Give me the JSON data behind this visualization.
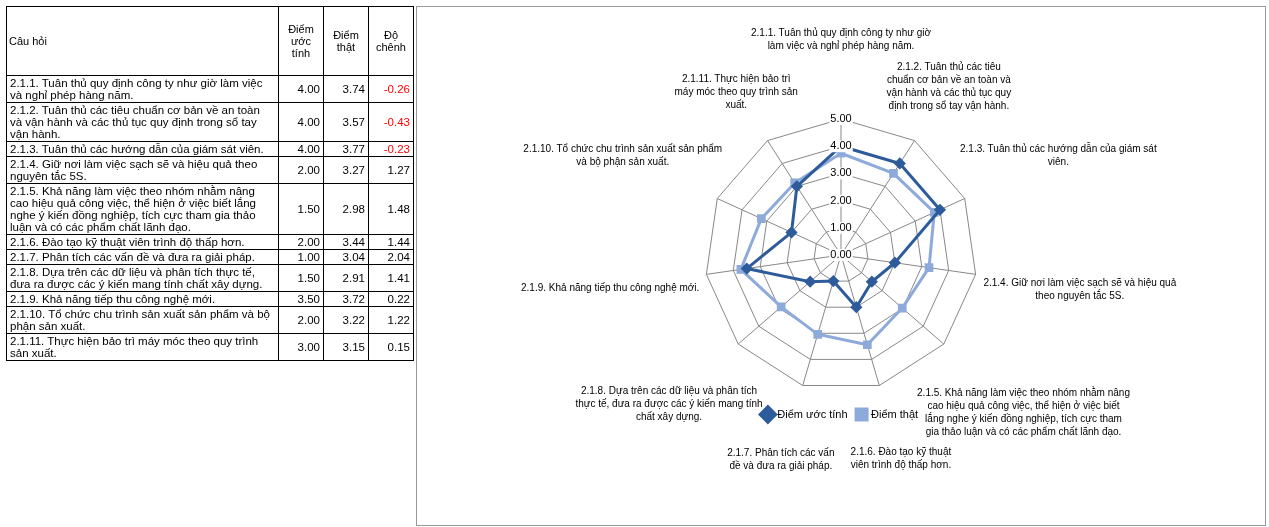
{
  "chart_data": [
    {
      "type": "heatmap",
      "ylabel": "Câu hỏi",
      "categories": [
        "Điểm ước tính",
        "Điểm thật",
        "Độ chênh"
      ],
      "y_categories": [
        "2.1.1. Tuân thủ quy định công ty như giờ làm việc và nghỉ phép hàng năm.",
        "2.1.2. Tuân thủ các tiêu chuẩn cơ bản về an toàn và vận hành và các thủ tục quy định trong sổ tay vận hành.",
        "2.1.3. Tuân thủ các hướng dẫn của giám sát viên.",
        "2.1.4. Giữ nơi làm việc sạch sẽ và hiệu quả theo nguyên tắc 5S.",
        "2.1.5. Khả năng làm việc theo nhóm nhằm nâng cao hiệu quả công việc, thể hiện ở việc biết lắng nghe ý kiến đồng nghiệp, tích cực tham gia thảo luận và có các phẩm chất lãnh đạo.",
        "2.1.6. Đào tạo kỹ thuật viên trình độ thấp hơn.",
        "2.1.7. Phân tích các vấn đề và đưa ra giải pháp.",
        "2.1.8. Dựa trên các dữ liệu và phân tích thực tế, đưa ra được các ý kiến mang tính chất xây dựng.",
        "2.1.9. Khả năng tiếp thu công nghệ mới.",
        "2.1.10. Tổ chức chu trình sản xuất sản phẩm và bộ phận sản xuất.",
        "2.1.11. Thực hiện bảo trì máy móc theo quy trình sản xuất."
      ],
      "cells": [
        [
          4.0,
          3.74,
          -0.26
        ],
        [
          4.0,
          3.57,
          -0.43
        ],
        [
          4.0,
          3.77,
          -0.23
        ],
        [
          2.0,
          3.27,
          1.27
        ],
        [
          1.5,
          2.98,
          1.48
        ],
        [
          2.0,
          3.44,
          1.44
        ],
        [
          1.0,
          3.04,
          2.04
        ],
        [
          1.5,
          2.91,
          1.41
        ],
        [
          3.5,
          3.72,
          0.22
        ],
        [
          2.0,
          3.22,
          1.22
        ],
        [
          3.0,
          3.15,
          0.15
        ]
      ],
      "cell_labels": [
        [
          "4.00",
          "3.74",
          "-0.26"
        ],
        [
          "4.00",
          "3.57",
          "-0.43"
        ],
        [
          "4.00",
          "3.77",
          "-0.23"
        ],
        [
          "2.00",
          "3.27",
          "1.27"
        ],
        [
          "1.50",
          "2.98",
          "1.48"
        ],
        [
          "2.00",
          "3.44",
          "1.44"
        ],
        [
          "1.00",
          "3.04",
          "2.04"
        ],
        [
          "1.50",
          "2.91",
          "1.41"
        ],
        [
          "3.50",
          "3.72",
          "0.22"
        ],
        [
          "2.00",
          "3.22",
          "1.22"
        ],
        [
          "3.00",
          "3.15",
          "0.15"
        ]
      ]
    },
    {
      "type": "radar",
      "categories": [
        "2.1.1. Tuân thủ quy định công ty như giờ làm việc và nghỉ phép hàng năm.",
        "2.1.2. Tuân thủ các tiêu chuẩn cơ bản về an toàn và vận hành và các thủ tục quy định trong sổ tay vận hành.",
        "2.1.3. Tuân thủ các hướng dẫn của giám sát viên.",
        "2.1.4. Giữ nơi làm việc sạch sẽ và hiệu quả theo nguyên tắc 5S.",
        "2.1.5. Khả năng làm việc theo nhóm nhằm nâng cao hiệu quả công việc, thể hiện ở việc biết lắng nghe ý kiến đồng nghiệp, tích cực tham gia thảo luận và có các phẩm chất lãnh đạo.",
        "2.1.6. Đào tạo kỹ thuật viên trình độ thấp hơn.",
        "2.1.7. Phân tích các vấn đề và đưa ra giải pháp.",
        "2.1.8. Dựa trên các dữ liệu và phân tích thực tế, đưa ra được các ý kiến mang tính chất xây dựng.",
        "2.1.9. Khả năng tiếp thu công nghệ mới.",
        "2.1.10. Tổ chức chu trình sản xuất sản phẩm và bộ phận sản xuất.",
        "2.1.11. Thực hiện bảo trì máy móc theo quy trình sản xuất."
      ],
      "series": [
        {
          "name": "Điểm ước tính",
          "color": "#2e5c9a",
          "marker": "diamond",
          "values": [
            4.0,
            4.0,
            4.0,
            2.0,
            1.5,
            2.0,
            1.0,
            1.5,
            3.5,
            2.0,
            3.0
          ]
        },
        {
          "name": "Điểm thật",
          "color": "#8eaadb",
          "marker": "square",
          "values": [
            3.74,
            3.57,
            3.77,
            3.27,
            2.98,
            3.44,
            3.04,
            2.91,
            3.72,
            3.22,
            3.15
          ]
        }
      ],
      "ylim": [
        0,
        5
      ],
      "yticks": [
        {
          "value": 0,
          "label": "0.00"
        },
        {
          "value": 1,
          "label": "1.00"
        },
        {
          "value": 2,
          "label": "2.00"
        },
        {
          "value": 3,
          "label": "3.00"
        },
        {
          "value": 4,
          "label": "4.00"
        },
        {
          "value": 5,
          "label": "5.00"
        }
      ],
      "grid": true,
      "legend": "bottom"
    }
  ]
}
